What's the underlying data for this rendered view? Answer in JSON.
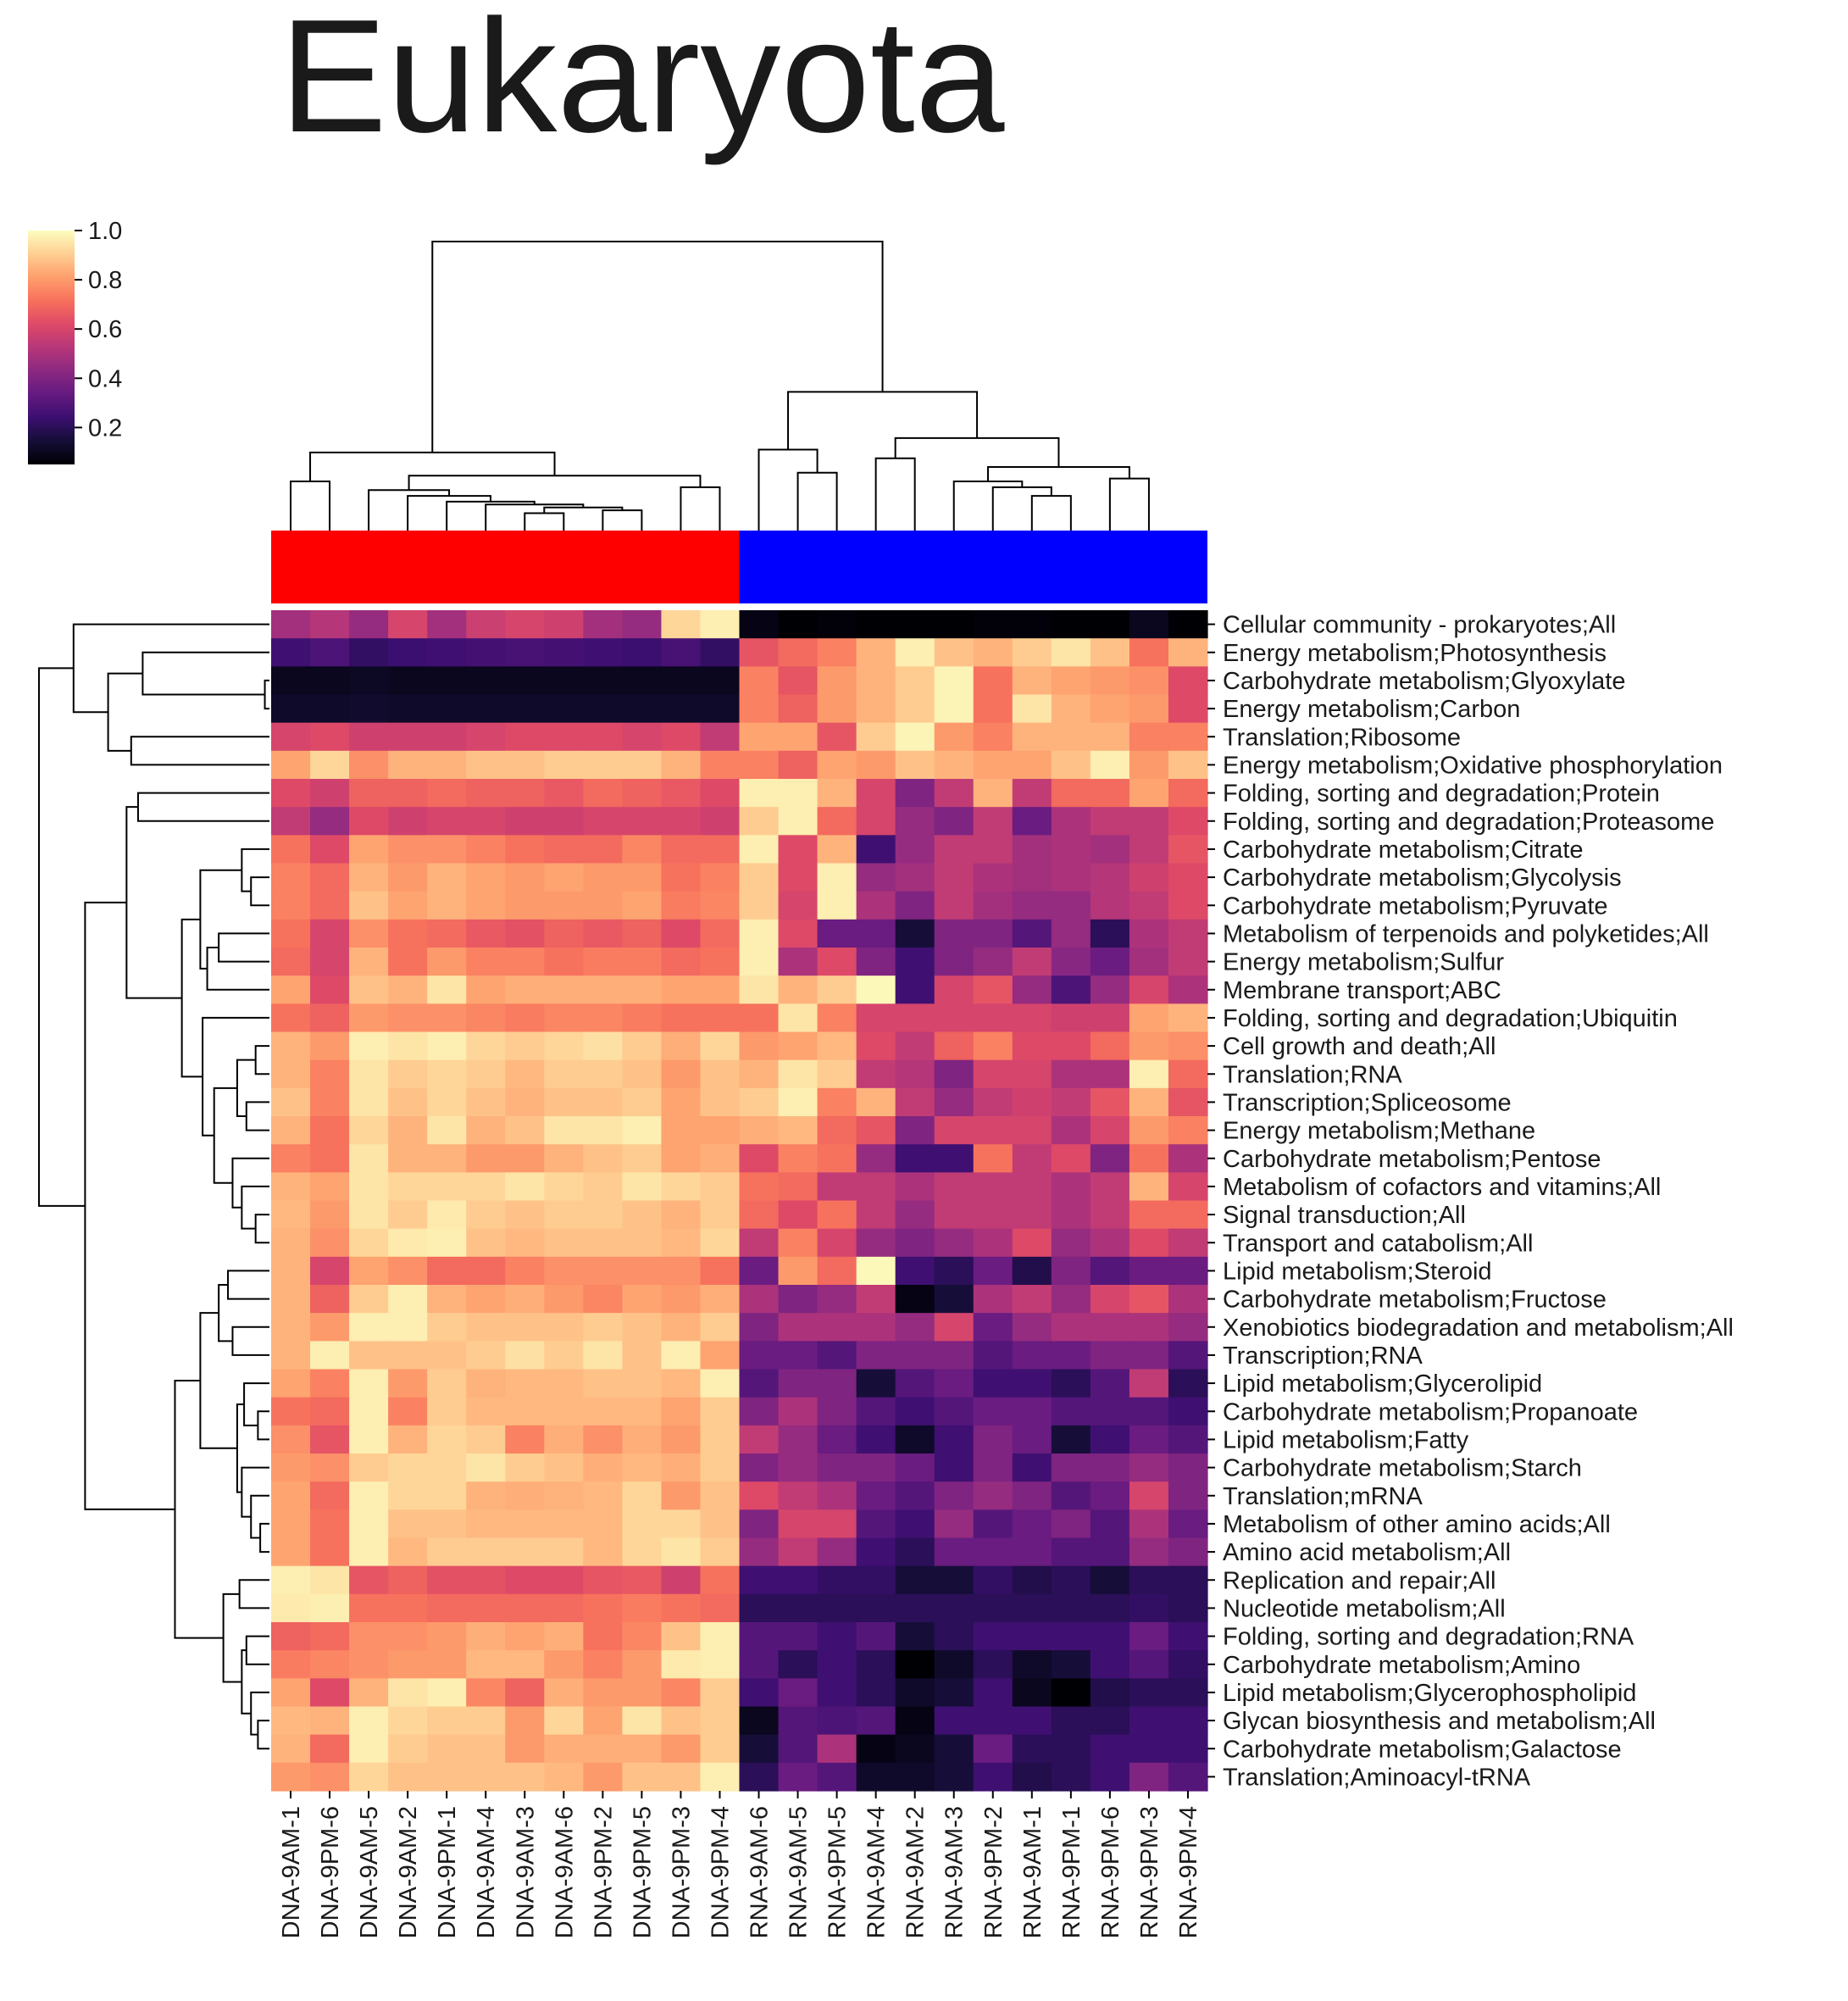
{
  "chart_data": {
    "type": "heatmap",
    "title": "Eukaryota",
    "xlabel": "",
    "ylabel": "",
    "colormap": "magma",
    "colorbar": {
      "range": [
        0.05,
        1.0
      ],
      "ticks": [
        0.2,
        0.4,
        0.6,
        0.8,
        1.0
      ],
      "tick_labels": [
        "0.2",
        "0.4",
        "0.6",
        "0.8",
        "1.0"
      ]
    },
    "group_colors": {
      "DNA": "#ff0000",
      "RNA": "#0000ff"
    },
    "columns": [
      "DNA-9AM-1",
      "DNA-9PM-6",
      "DNA-9AM-5",
      "DNA-9AM-2",
      "DNA-9PM-1",
      "DNA-9AM-4",
      "DNA-9AM-3",
      "DNA-9AM-6",
      "DNA-9PM-2",
      "DNA-9PM-5",
      "DNA-9PM-3",
      "DNA-9PM-4",
      "RNA-9AM-6",
      "RNA-9AM-5",
      "RNA-9PM-5",
      "RNA-9AM-4",
      "RNA-9AM-2",
      "RNA-9AM-3",
      "RNA-9PM-2",
      "RNA-9AM-1",
      "RNA-9PM-1",
      "RNA-9PM-6",
      "RNA-9PM-3",
      "RNA-9PM-4"
    ],
    "rows": [
      "Cellular community - prokaryotes;All",
      "Energy metabolism;Photosynthesis",
      "Carbohydrate metabolism;Glyoxylate",
      "Energy metabolism;Carbon",
      "Translation;Ribosome",
      "Energy metabolism;Oxidative phosphorylation",
      "Folding, sorting and degradation;Protein",
      "Folding, sorting and degradation;Proteasome",
      "Carbohydrate metabolism;Citrate",
      "Carbohydrate metabolism;Glycolysis",
      "Carbohydrate metabolism;Pyruvate",
      "Metabolism of terpenoids and polyketides;All",
      "Energy metabolism;Sulfur",
      "Membrane transport;ABC",
      "Folding, sorting and degradation;Ubiquitin",
      "Cell growth and death;All",
      "Translation;RNA",
      "Transcription;Spliceosome",
      "Energy metabolism;Methane",
      "Carbohydrate metabolism;Pentose",
      "Metabolism of cofactors and vitamins;All",
      "Signal transduction;All",
      "Transport and catabolism;All",
      "Lipid metabolism;Steroid",
      "Carbohydrate metabolism;Fructose",
      "Xenobiotics biodegradation and metabolism;All",
      "Transcription;RNA",
      "Lipid metabolism;Glycerolipid",
      "Carbohydrate metabolism;Propanoate",
      "Lipid metabolism;Fatty",
      "Carbohydrate metabolism;Starch",
      "Translation;mRNA",
      "Metabolism of other amino acids;All",
      "Amino acid metabolism;All",
      "Replication and repair;All",
      "Nucleotide metabolism;All",
      "Folding, sorting and degradation;RNA",
      "Carbohydrate metabolism;Amino",
      "Lipid metabolism;Glycerophospholipid",
      "Glycan biosynthesis and metabolism;All",
      "Carbohydrate metabolism;Galactose",
      "Translation;Aminoacyl-tRNA"
    ],
    "values": [
      [
        0.48,
        0.52,
        0.45,
        0.6,
        0.48,
        0.57,
        0.6,
        0.58,
        0.48,
        0.45,
        0.92,
        0.97,
        0.08,
        0.04,
        0.06,
        0.05,
        0.04,
        0.05,
        0.06,
        0.06,
        0.05,
        0.03,
        0.1,
        0.02
      ],
      [
        0.25,
        0.28,
        0.22,
        0.24,
        0.25,
        0.26,
        0.27,
        0.26,
        0.25,
        0.24,
        0.27,
        0.22,
        0.65,
        0.7,
        0.75,
        0.85,
        0.97,
        0.88,
        0.85,
        0.9,
        0.95,
        0.88,
        0.72,
        0.85
      ],
      [
        0.1,
        0.1,
        0.11,
        0.1,
        0.1,
        0.1,
        0.1,
        0.1,
        0.1,
        0.1,
        0.1,
        0.1,
        0.75,
        0.65,
        0.8,
        0.85,
        0.9,
        0.98,
        0.72,
        0.85,
        0.82,
        0.8,
        0.78,
        0.62
      ],
      [
        0.12,
        0.12,
        0.13,
        0.12,
        0.12,
        0.12,
        0.12,
        0.12,
        0.12,
        0.12,
        0.12,
        0.12,
        0.75,
        0.68,
        0.8,
        0.85,
        0.9,
        0.98,
        0.72,
        0.95,
        0.85,
        0.82,
        0.8,
        0.62
      ],
      [
        0.6,
        0.62,
        0.58,
        0.58,
        0.58,
        0.6,
        0.62,
        0.62,
        0.62,
        0.6,
        0.62,
        0.55,
        0.82,
        0.82,
        0.65,
        0.9,
        0.98,
        0.8,
        0.75,
        0.85,
        0.85,
        0.85,
        0.75,
        0.75
      ],
      [
        0.82,
        0.92,
        0.78,
        0.85,
        0.85,
        0.88,
        0.88,
        0.9,
        0.9,
        0.9,
        0.85,
        0.75,
        0.75,
        0.68,
        0.82,
        0.8,
        0.88,
        0.85,
        0.82,
        0.82,
        0.88,
        0.97,
        0.8,
        0.88
      ],
      [
        0.62,
        0.58,
        0.68,
        0.68,
        0.7,
        0.68,
        0.68,
        0.66,
        0.7,
        0.68,
        0.66,
        0.62,
        0.97,
        0.97,
        0.85,
        0.6,
        0.4,
        0.55,
        0.85,
        0.55,
        0.7,
        0.7,
        0.82,
        0.7
      ],
      [
        0.55,
        0.45,
        0.62,
        0.58,
        0.6,
        0.6,
        0.58,
        0.58,
        0.6,
        0.6,
        0.6,
        0.58,
        0.9,
        0.97,
        0.7,
        0.6,
        0.45,
        0.4,
        0.55,
        0.35,
        0.5,
        0.55,
        0.55,
        0.62
      ],
      [
        0.72,
        0.62,
        0.82,
        0.78,
        0.78,
        0.75,
        0.72,
        0.7,
        0.7,
        0.76,
        0.7,
        0.7,
        0.97,
        0.62,
        0.85,
        0.25,
        0.45,
        0.55,
        0.55,
        0.48,
        0.5,
        0.48,
        0.55,
        0.65
      ],
      [
        0.75,
        0.7,
        0.85,
        0.8,
        0.85,
        0.82,
        0.8,
        0.82,
        0.8,
        0.8,
        0.72,
        0.75,
        0.9,
        0.62,
        0.97,
        0.45,
        0.48,
        0.55,
        0.5,
        0.48,
        0.5,
        0.52,
        0.58,
        0.62
      ],
      [
        0.75,
        0.7,
        0.88,
        0.82,
        0.85,
        0.82,
        0.8,
        0.8,
        0.8,
        0.82,
        0.74,
        0.76,
        0.9,
        0.6,
        0.97,
        0.5,
        0.4,
        0.55,
        0.48,
        0.45,
        0.45,
        0.52,
        0.55,
        0.62
      ],
      [
        0.72,
        0.6,
        0.78,
        0.72,
        0.7,
        0.66,
        0.64,
        0.68,
        0.66,
        0.68,
        0.62,
        0.7,
        0.97,
        0.62,
        0.35,
        0.35,
        0.15,
        0.4,
        0.4,
        0.3,
        0.45,
        0.2,
        0.5,
        0.55
      ],
      [
        0.7,
        0.6,
        0.85,
        0.72,
        0.8,
        0.75,
        0.75,
        0.72,
        0.74,
        0.74,
        0.7,
        0.72,
        0.97,
        0.5,
        0.62,
        0.4,
        0.25,
        0.4,
        0.45,
        0.55,
        0.42,
        0.35,
        0.48,
        0.55
      ],
      [
        0.82,
        0.62,
        0.88,
        0.85,
        0.95,
        0.82,
        0.84,
        0.84,
        0.84,
        0.84,
        0.82,
        0.82,
        0.95,
        0.85,
        0.9,
        0.99,
        0.25,
        0.6,
        0.65,
        0.45,
        0.28,
        0.45,
        0.6,
        0.5
      ],
      [
        0.72,
        0.68,
        0.8,
        0.78,
        0.78,
        0.76,
        0.74,
        0.76,
        0.76,
        0.74,
        0.72,
        0.72,
        0.72,
        0.95,
        0.75,
        0.6,
        0.6,
        0.6,
        0.6,
        0.6,
        0.58,
        0.58,
        0.82,
        0.85
      ],
      [
        0.85,
        0.8,
        0.97,
        0.95,
        0.97,
        0.92,
        0.9,
        0.92,
        0.94,
        0.9,
        0.84,
        0.92,
        0.8,
        0.82,
        0.86,
        0.62,
        0.55,
        0.68,
        0.75,
        0.62,
        0.62,
        0.7,
        0.8,
        0.78
      ],
      [
        0.85,
        0.75,
        0.95,
        0.9,
        0.92,
        0.9,
        0.86,
        0.9,
        0.9,
        0.88,
        0.8,
        0.88,
        0.85,
        0.95,
        0.9,
        0.55,
        0.52,
        0.4,
        0.6,
        0.6,
        0.5,
        0.5,
        0.97,
        0.7
      ],
      [
        0.88,
        0.75,
        0.95,
        0.88,
        0.92,
        0.88,
        0.85,
        0.88,
        0.88,
        0.9,
        0.82,
        0.88,
        0.9,
        0.97,
        0.75,
        0.85,
        0.55,
        0.45,
        0.55,
        0.58,
        0.55,
        0.65,
        0.85,
        0.65
      ],
      [
        0.85,
        0.72,
        0.92,
        0.85,
        0.95,
        0.85,
        0.88,
        0.95,
        0.95,
        0.97,
        0.82,
        0.82,
        0.84,
        0.86,
        0.7,
        0.65,
        0.4,
        0.6,
        0.6,
        0.6,
        0.5,
        0.6,
        0.8,
        0.75
      ],
      [
        0.75,
        0.72,
        0.95,
        0.85,
        0.85,
        0.8,
        0.8,
        0.85,
        0.88,
        0.9,
        0.82,
        0.84,
        0.62,
        0.75,
        0.72,
        0.45,
        0.25,
        0.25,
        0.72,
        0.55,
        0.62,
        0.4,
        0.72,
        0.5
      ],
      [
        0.85,
        0.82,
        0.95,
        0.92,
        0.92,
        0.92,
        0.95,
        0.92,
        0.9,
        0.95,
        0.92,
        0.9,
        0.72,
        0.7,
        0.55,
        0.55,
        0.5,
        0.55,
        0.55,
        0.55,
        0.5,
        0.55,
        0.85,
        0.6
      ],
      [
        0.86,
        0.8,
        0.95,
        0.9,
        0.96,
        0.9,
        0.88,
        0.9,
        0.9,
        0.88,
        0.85,
        0.9,
        0.7,
        0.62,
        0.72,
        0.55,
        0.45,
        0.55,
        0.55,
        0.55,
        0.5,
        0.55,
        0.7,
        0.7
      ],
      [
        0.85,
        0.78,
        0.92,
        0.96,
        0.97,
        0.88,
        0.86,
        0.88,
        0.88,
        0.88,
        0.86,
        0.92,
        0.55,
        0.75,
        0.6,
        0.45,
        0.4,
        0.45,
        0.5,
        0.62,
        0.45,
        0.5,
        0.62,
        0.55
      ],
      [
        0.85,
        0.6,
        0.82,
        0.78,
        0.7,
        0.7,
        0.75,
        0.78,
        0.78,
        0.78,
        0.78,
        0.72,
        0.35,
        0.8,
        0.7,
        0.99,
        0.25,
        0.2,
        0.35,
        0.18,
        0.4,
        0.3,
        0.35,
        0.35
      ],
      [
        0.85,
        0.68,
        0.9,
        0.97,
        0.85,
        0.82,
        0.84,
        0.8,
        0.76,
        0.82,
        0.8,
        0.84,
        0.5,
        0.4,
        0.45,
        0.55,
        0.08,
        0.15,
        0.5,
        0.55,
        0.45,
        0.6,
        0.65,
        0.5
      ],
      [
        0.85,
        0.8,
        0.97,
        0.97,
        0.9,
        0.88,
        0.88,
        0.88,
        0.9,
        0.88,
        0.85,
        0.9,
        0.4,
        0.5,
        0.5,
        0.5,
        0.45,
        0.6,
        0.35,
        0.45,
        0.5,
        0.5,
        0.5,
        0.45
      ],
      [
        0.85,
        0.97,
        0.88,
        0.88,
        0.88,
        0.9,
        0.94,
        0.9,
        0.95,
        0.88,
        0.97,
        0.82,
        0.35,
        0.35,
        0.3,
        0.4,
        0.4,
        0.4,
        0.3,
        0.35,
        0.35,
        0.4,
        0.4,
        0.3
      ],
      [
        0.82,
        0.75,
        0.97,
        0.8,
        0.9,
        0.85,
        0.86,
        0.86,
        0.88,
        0.88,
        0.86,
        0.97,
        0.3,
        0.4,
        0.4,
        0.15,
        0.3,
        0.35,
        0.25,
        0.25,
        0.2,
        0.3,
        0.55,
        0.2
      ],
      [
        0.72,
        0.7,
        0.97,
        0.75,
        0.9,
        0.86,
        0.86,
        0.86,
        0.86,
        0.86,
        0.82,
        0.9,
        0.4,
        0.5,
        0.4,
        0.3,
        0.25,
        0.3,
        0.35,
        0.35,
        0.3,
        0.3,
        0.3,
        0.25
      ],
      [
        0.78,
        0.65,
        0.97,
        0.85,
        0.92,
        0.9,
        0.75,
        0.84,
        0.78,
        0.84,
        0.8,
        0.9,
        0.55,
        0.45,
        0.35,
        0.25,
        0.12,
        0.25,
        0.4,
        0.35,
        0.15,
        0.25,
        0.35,
        0.3
      ],
      [
        0.8,
        0.78,
        0.9,
        0.92,
        0.92,
        0.95,
        0.9,
        0.88,
        0.84,
        0.86,
        0.84,
        0.9,
        0.4,
        0.45,
        0.4,
        0.4,
        0.35,
        0.25,
        0.4,
        0.25,
        0.4,
        0.4,
        0.45,
        0.4
      ],
      [
        0.82,
        0.7,
        0.97,
        0.92,
        0.92,
        0.85,
        0.84,
        0.85,
        0.86,
        0.92,
        0.8,
        0.88,
        0.62,
        0.55,
        0.5,
        0.35,
        0.3,
        0.4,
        0.45,
        0.4,
        0.3,
        0.35,
        0.6,
        0.4
      ],
      [
        0.82,
        0.72,
        0.97,
        0.88,
        0.88,
        0.86,
        0.86,
        0.86,
        0.86,
        0.92,
        0.92,
        0.88,
        0.4,
        0.6,
        0.6,
        0.3,
        0.25,
        0.45,
        0.3,
        0.35,
        0.4,
        0.3,
        0.5,
        0.35
      ],
      [
        0.82,
        0.72,
        0.97,
        0.86,
        0.9,
        0.9,
        0.9,
        0.9,
        0.86,
        0.92,
        0.95,
        0.9,
        0.45,
        0.55,
        0.45,
        0.25,
        0.2,
        0.35,
        0.35,
        0.35,
        0.3,
        0.3,
        0.45,
        0.4
      ],
      [
        0.97,
        0.95,
        0.65,
        0.68,
        0.64,
        0.64,
        0.62,
        0.62,
        0.65,
        0.66,
        0.58,
        0.72,
        0.25,
        0.25,
        0.22,
        0.22,
        0.15,
        0.15,
        0.22,
        0.18,
        0.2,
        0.15,
        0.2,
        0.2
      ],
      [
        0.96,
        0.97,
        0.72,
        0.72,
        0.7,
        0.7,
        0.7,
        0.7,
        0.72,
        0.74,
        0.72,
        0.7,
        0.2,
        0.2,
        0.2,
        0.2,
        0.2,
        0.2,
        0.2,
        0.2,
        0.2,
        0.2,
        0.22,
        0.2
      ],
      [
        0.68,
        0.7,
        0.78,
        0.78,
        0.8,
        0.84,
        0.82,
        0.84,
        0.72,
        0.76,
        0.88,
        0.97,
        0.3,
        0.3,
        0.25,
        0.3,
        0.15,
        0.2,
        0.25,
        0.25,
        0.25,
        0.25,
        0.35,
        0.25
      ],
      [
        0.74,
        0.76,
        0.78,
        0.8,
        0.8,
        0.86,
        0.86,
        0.8,
        0.75,
        0.8,
        0.96,
        0.97,
        0.3,
        0.2,
        0.25,
        0.2,
        0.05,
        0.12,
        0.2,
        0.12,
        0.15,
        0.25,
        0.3,
        0.22
      ],
      [
        0.82,
        0.62,
        0.85,
        0.95,
        0.97,
        0.76,
        0.68,
        0.84,
        0.8,
        0.8,
        0.76,
        0.9,
        0.25,
        0.35,
        0.25,
        0.2,
        0.12,
        0.15,
        0.25,
        0.1,
        0.03,
        0.18,
        0.2,
        0.2
      ],
      [
        0.86,
        0.85,
        0.97,
        0.92,
        0.9,
        0.9,
        0.8,
        0.92,
        0.82,
        0.95,
        0.88,
        0.9,
        0.1,
        0.3,
        0.28,
        0.3,
        0.08,
        0.25,
        0.25,
        0.25,
        0.2,
        0.2,
        0.25,
        0.25
      ],
      [
        0.85,
        0.7,
        0.97,
        0.9,
        0.88,
        0.88,
        0.8,
        0.84,
        0.84,
        0.84,
        0.8,
        0.9,
        0.15,
        0.3,
        0.5,
        0.08,
        0.1,
        0.15,
        0.35,
        0.2,
        0.2,
        0.25,
        0.25,
        0.25
      ],
      [
        0.8,
        0.78,
        0.92,
        0.88,
        0.88,
        0.88,
        0.88,
        0.86,
        0.8,
        0.88,
        0.88,
        0.97,
        0.2,
        0.35,
        0.3,
        0.12,
        0.12,
        0.15,
        0.25,
        0.18,
        0.2,
        0.25,
        0.4,
        0.3
      ]
    ]
  }
}
